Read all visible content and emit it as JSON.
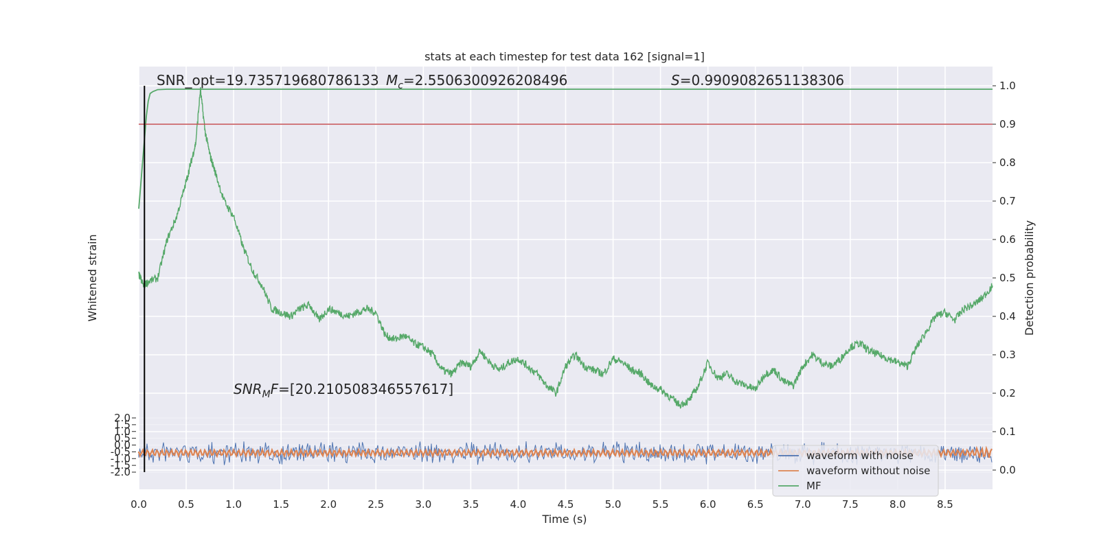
{
  "chart_data": {
    "type": "line",
    "title": "stats at each timestep for test data 162 [signal=1]",
    "xlabel": "Time (s)",
    "ylabel_left": "Whitened strain",
    "ylabel_right": "Detection probability",
    "xlim": [
      0.0,
      9.0
    ],
    "ylim_right": [
      -0.05,
      1.05
    ],
    "x_ticks": [
      "0.0",
      "0.5",
      "1.0",
      "1.5",
      "2.0",
      "2.5",
      "3.0",
      "3.5",
      "4.0",
      "4.5",
      "5.0",
      "5.5",
      "6.0",
      "6.5",
      "7.0",
      "7.5",
      "8.0",
      "8.5"
    ],
    "y_ticks_right": [
      "0.0",
      "0.1",
      "0.2",
      "0.3",
      "0.4",
      "0.5",
      "0.6",
      "0.7",
      "0.8",
      "0.9",
      "1.0"
    ],
    "grid": true,
    "legend_position": "lower-right",
    "annotations": {
      "snr_opt": "SNR_opt=19.735719680786133",
      "mc_prefix": "M",
      "mc_sub": "c",
      "mc_value": "=2.5506300926208496",
      "s_prefix": "S",
      "s_value": "=0.9909082651138306",
      "snr_mf_prefix": "SNR",
      "snr_mf_sub": "M",
      "snr_mf_suffix": "F",
      "snr_mf_value": "=[20.210508346557617]"
    },
    "threshold": {
      "y": 0.9,
      "color": "#c44e52"
    },
    "peak_marker_x": 0.06,
    "series": [
      {
        "name": "waveform with noise",
        "color": "#4c72b0"
      },
      {
        "name": "waveform without noise",
        "color": "#dd8452"
      },
      {
        "name": "MF",
        "color": "#55a868"
      }
    ],
    "detection_probability": {
      "color": "#55a868",
      "x": [
        0.0,
        0.02,
        0.04,
        0.06,
        0.08,
        0.1,
        0.12,
        0.15,
        0.2,
        0.3,
        0.5,
        9.0
      ],
      "y": [
        0.68,
        0.74,
        0.8,
        0.86,
        0.92,
        0.96,
        0.98,
        0.985,
        0.99,
        0.991,
        0.991,
        0.991
      ]
    },
    "mf_trace": {
      "x": [
        0.0,
        0.05,
        0.1,
        0.2,
        0.3,
        0.4,
        0.5,
        0.55,
        0.6,
        0.65,
        0.7,
        0.75,
        0.8,
        0.9,
        1.0,
        1.1,
        1.2,
        1.3,
        1.4,
        1.5,
        1.6,
        1.7,
        1.8,
        1.9,
        2.0,
        2.1,
        2.2,
        2.3,
        2.4,
        2.5,
        2.6,
        2.7,
        2.8,
        2.9,
        3.0,
        3.1,
        3.2,
        3.3,
        3.4,
        3.5,
        3.6,
        3.7,
        3.8,
        3.9,
        4.0,
        4.1,
        4.2,
        4.3,
        4.4,
        4.5,
        4.6,
        4.7,
        4.8,
        4.9,
        5.0,
        5.1,
        5.2,
        5.3,
        5.4,
        5.5,
        5.6,
        5.7,
        5.8,
        5.9,
        6.0,
        6.1,
        6.2,
        6.3,
        6.4,
        6.5,
        6.6,
        6.7,
        6.8,
        6.9,
        7.0,
        7.1,
        7.2,
        7.3,
        7.4,
        7.5,
        7.6,
        7.7,
        7.8,
        7.9,
        8.0,
        8.1,
        8.2,
        8.3,
        8.4,
        8.5,
        8.6,
        8.7,
        8.8,
        8.9,
        9.0
      ],
      "y": [
        0.51,
        0.48,
        0.49,
        0.5,
        0.6,
        0.66,
        0.75,
        0.8,
        0.85,
        0.99,
        0.88,
        0.82,
        0.78,
        0.7,
        0.66,
        0.58,
        0.52,
        0.48,
        0.42,
        0.41,
        0.4,
        0.42,
        0.43,
        0.39,
        0.42,
        0.41,
        0.4,
        0.41,
        0.42,
        0.41,
        0.35,
        0.34,
        0.35,
        0.33,
        0.32,
        0.3,
        0.26,
        0.25,
        0.28,
        0.27,
        0.31,
        0.28,
        0.26,
        0.28,
        0.29,
        0.27,
        0.25,
        0.22,
        0.2,
        0.27,
        0.3,
        0.27,
        0.26,
        0.25,
        0.29,
        0.28,
        0.26,
        0.25,
        0.22,
        0.21,
        0.19,
        0.17,
        0.18,
        0.22,
        0.28,
        0.24,
        0.25,
        0.23,
        0.22,
        0.21,
        0.25,
        0.26,
        0.23,
        0.22,
        0.27,
        0.3,
        0.28,
        0.27,
        0.29,
        0.32,
        0.33,
        0.31,
        0.3,
        0.29,
        0.28,
        0.27,
        0.32,
        0.36,
        0.4,
        0.41,
        0.39,
        0.42,
        0.43,
        0.45,
        0.48
      ]
    },
    "strain_yticks": [
      "2.0",
      "1.5",
      "1.0",
      "0.5",
      "0.0",
      "-0.5",
      "-1.0",
      "-1.5",
      "-2.0"
    ]
  }
}
